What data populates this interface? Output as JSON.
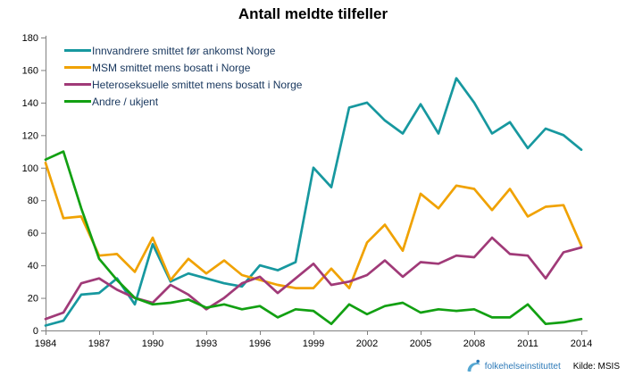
{
  "title": "Antall meldte tilfeller",
  "footer": {
    "logo_text": "folkehelseinstituttet",
    "source_label": "Kilde: MSIS",
    "logo_color": "#2D7AB8",
    "logo_icon_color": "#55A7D2"
  },
  "axis": {
    "line_color": "#808080",
    "label_color": "#000000",
    "x_tick_labels": [
      "1984",
      "1987",
      "1990",
      "1993",
      "1996",
      "1999",
      "2002",
      "2005",
      "2008",
      "2011",
      "2014"
    ]
  },
  "chart_data": {
    "type": "line",
    "title": "Antall meldte tilfeller",
    "xlabel": "",
    "ylabel": "",
    "x": [
      1984,
      1985,
      1986,
      1987,
      1988,
      1989,
      1990,
      1991,
      1992,
      1993,
      1994,
      1995,
      1996,
      1997,
      1998,
      1999,
      2000,
      2001,
      2002,
      2003,
      2004,
      2005,
      2006,
      2007,
      2008,
      2009,
      2010,
      2011,
      2012,
      2013,
      2014
    ],
    "xlim": [
      1984,
      2014
    ],
    "ylim": [
      0,
      180
    ],
    "y_tick_step": 20,
    "grid": false,
    "legend_position": "top-left-inside",
    "series": [
      {
        "name": "Innvandrere smittet før ankomst Norge",
        "color": "#17989F",
        "values": [
          3,
          6,
          22,
          23,
          32,
          16,
          53,
          30,
          35,
          32,
          29,
          27,
          40,
          37,
          42,
          100,
          88,
          137,
          140,
          129,
          121,
          139,
          121,
          155,
          140,
          121,
          128,
          112,
          124,
          120,
          111
        ]
      },
      {
        "name": "MSM smittet mens bosatt i Norge",
        "color": "#F0A202",
        "values": [
          103,
          69,
          70,
          46,
          47,
          36,
          57,
          31,
          44,
          35,
          43,
          34,
          31,
          28,
          26,
          26,
          38,
          26,
          54,
          65,
          49,
          84,
          75,
          89,
          87,
          74,
          87,
          70,
          76,
          77,
          52
        ]
      },
      {
        "name": "Heteroseksuelle smittet mens bosatt i Norge",
        "color": "#A03A78",
        "values": [
          7,
          11,
          29,
          32,
          25,
          20,
          17,
          28,
          22,
          13,
          20,
          29,
          33,
          23,
          32,
          41,
          28,
          30,
          34,
          43,
          33,
          42,
          41,
          46,
          45,
          57,
          47,
          46,
          32,
          48,
          51
        ]
      },
      {
        "name": "Andre / ukjent",
        "color": "#12A012",
        "values": [
          105,
          110,
          75,
          44,
          31,
          20,
          16,
          17,
          19,
          14,
          16,
          13,
          15,
          8,
          13,
          12,
          4,
          16,
          10,
          15,
          17,
          11,
          13,
          12,
          13,
          8,
          8,
          16,
          4,
          5,
          7
        ]
      }
    ]
  }
}
